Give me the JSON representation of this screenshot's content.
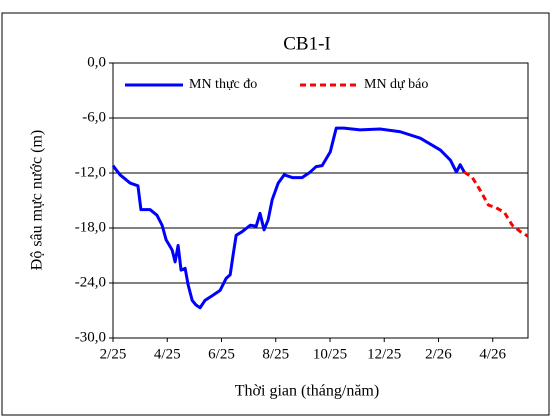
{
  "chart_data": {
    "type": "line",
    "title": "CB1-I",
    "x_label": "Thời gian  (tháng/năm)",
    "y_label": "Độ sâu mực nước (m)",
    "xlim": [
      0,
      15.3
    ],
    "ylim": [
      -30,
      0
    ],
    "xticks": [
      {
        "value": 0,
        "label": "2/25"
      },
      {
        "value": 2,
        "label": "4/25"
      },
      {
        "value": 4,
        "label": "6/25"
      },
      {
        "value": 6,
        "label": "8/25"
      },
      {
        "value": 8,
        "label": "10/25"
      },
      {
        "value": 10,
        "label": "12/25"
      },
      {
        "value": 12,
        "label": "2/26"
      },
      {
        "value": 14,
        "label": "4/26"
      }
    ],
    "yticks": [
      {
        "value": 0,
        "label": "0,0"
      },
      {
        "value": -6,
        "label": "-6,0"
      },
      {
        "value": -12,
        "label": "-12,0"
      },
      {
        "value": -18,
        "label": "-18,0"
      },
      {
        "value": -24,
        "label": "-24,0"
      },
      {
        "value": -30,
        "label": "-30,0"
      }
    ],
    "grid": true,
    "legend": "top",
    "series": [
      {
        "name": "MN thực đo",
        "color": "#0000ff",
        "dash": false,
        "x": [
          0,
          0.26,
          0.63,
          0.92,
          1.03,
          1.37,
          1.62,
          1.81,
          1.96,
          2.18,
          2.29,
          2.4,
          2.51,
          2.66,
          2.77,
          2.92,
          3.06,
          3.21,
          3.39,
          3.65,
          3.95,
          4.17,
          4.32,
          4.43,
          4.54,
          4.76,
          5.06,
          5.28,
          5.42,
          5.57,
          5.72,
          5.87,
          6.09,
          6.31,
          6.61,
          6.97,
          7.27,
          7.49,
          7.71,
          8.01,
          8.23,
          8.52,
          9.11,
          9.85,
          10.59,
          11.33,
          12.07,
          12.44,
          12.66,
          12.8,
          12.95
        ],
        "values": [
          -11.2,
          -12.2,
          -13.1,
          -13.4,
          -16.0,
          -16.0,
          -16.6,
          -17.7,
          -19.3,
          -20.4,
          -21.7,
          -19.9,
          -22.6,
          -22.4,
          -24.2,
          -25.9,
          -26.4,
          -26.7,
          -25.9,
          -25.4,
          -24.8,
          -23.5,
          -23.1,
          -20.9,
          -18.8,
          -18.4,
          -17.7,
          -17.8,
          -16.4,
          -18.2,
          -17.1,
          -14.9,
          -13.1,
          -12.2,
          -12.5,
          -12.5,
          -11.9,
          -11.3,
          -11.2,
          -9.7,
          -7.1,
          -7.1,
          -7.3,
          -7.2,
          -7.5,
          -8.2,
          -9.5,
          -10.6,
          -11.9,
          -11.1,
          -11.9
        ]
      },
      {
        "name": "MN dự báo",
        "color": "#ff0000",
        "dash": true,
        "x": [
          12.95,
          13.25,
          13.54,
          13.84,
          14.13,
          14.43,
          14.72,
          15.02,
          15.3
        ],
        "values": [
          -11.9,
          -12.5,
          -13.9,
          -15.5,
          -15.8,
          -16.3,
          -17.7,
          -18.4,
          -18.9
        ]
      }
    ]
  }
}
